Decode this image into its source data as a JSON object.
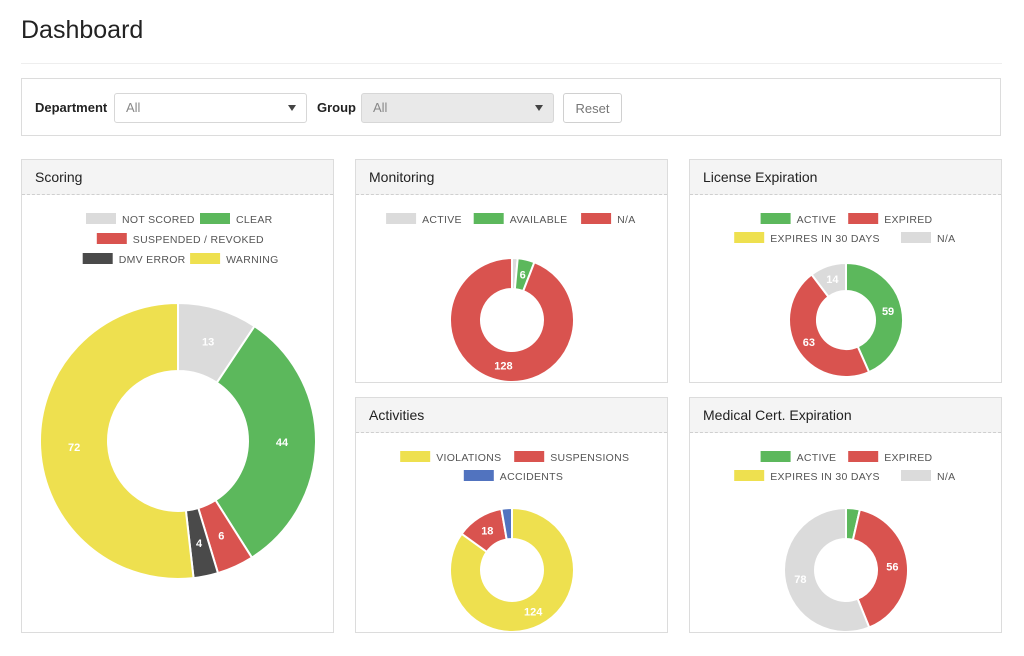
{
  "page": {
    "title": "Dashboard"
  },
  "filters": {
    "department_label": "Department",
    "department_value": "All",
    "group_label": "Group",
    "group_value": "All",
    "reset_label": "Reset"
  },
  "colors": {
    "gray": "#dbdbdb",
    "green": "#5cb85c",
    "red": "#d9534f",
    "yellow": "#eee04f",
    "dark": "#4a4a4a",
    "blue": "#5173bf"
  },
  "panels": {
    "scoring": {
      "title": "Scoring",
      "legend": [
        {
          "label": "NOT SCORED",
          "color": "#dbdbdb"
        },
        {
          "label": "CLEAR",
          "color": "#5cb85c"
        },
        {
          "label": "SUSPENDED / REVOKED",
          "color": "#d9534f"
        },
        {
          "label": "DMV ERROR",
          "color": "#4a4a4a"
        },
        {
          "label": "WARNING",
          "color": "#eee04f"
        }
      ]
    },
    "monitoring": {
      "title": "Monitoring",
      "legend": [
        {
          "label": "ACTIVE",
          "color": "#dbdbdb"
        },
        {
          "label": "AVAILABLE",
          "color": "#5cb85c"
        },
        {
          "label": "N/A",
          "color": "#d9534f"
        }
      ]
    },
    "license": {
      "title": "License Expiration",
      "legend": [
        {
          "label": "ACTIVE",
          "color": "#5cb85c"
        },
        {
          "label": "EXPIRED",
          "color": "#d9534f"
        },
        {
          "label": "EXPIRES IN 30 DAYS",
          "color": "#eee04f"
        },
        {
          "label": "N/A",
          "color": "#dbdbdb"
        }
      ]
    },
    "activities": {
      "title": "Activities",
      "legend": [
        {
          "label": "VIOLATIONS",
          "color": "#eee04f"
        },
        {
          "label": "SUSPENSIONS",
          "color": "#d9534f"
        },
        {
          "label": "ACCIDENTS",
          "color": "#5173bf"
        }
      ]
    },
    "medical": {
      "title": "Medical Cert. Expiration",
      "legend": [
        {
          "label": "ACTIVE",
          "color": "#5cb85c"
        },
        {
          "label": "EXPIRED",
          "color": "#d9534f"
        },
        {
          "label": "EXPIRES IN 30 DAYS",
          "color": "#eee04f"
        },
        {
          "label": "N/A",
          "color": "#dbdbdb"
        }
      ]
    }
  },
  "chart_data": [
    {
      "type": "pie",
      "title": "Scoring",
      "categories": [
        "NOT SCORED",
        "CLEAR",
        "SUSPENDED / REVOKED",
        "DMV ERROR",
        "WARNING"
      ],
      "values": [
        13,
        44,
        6,
        4,
        72
      ],
      "labels": [
        "13",
        "44",
        "6",
        "4",
        "72"
      ],
      "colors": [
        "#dbdbdb",
        "#5cb85c",
        "#d9534f",
        "#4a4a4a",
        "#eee04f"
      ]
    },
    {
      "type": "pie",
      "title": "Monitoring",
      "categories": [
        "ACTIVE",
        "AVAILABLE",
        "N/A"
      ],
      "values": [
        2,
        6,
        128
      ],
      "labels": [
        "",
        "6",
        "128"
      ],
      "colors": [
        "#dbdbdb",
        "#5cb85c",
        "#d9534f"
      ]
    },
    {
      "type": "pie",
      "title": "License Expiration",
      "categories": [
        "ACTIVE",
        "EXPIRED",
        "EXPIRES IN 30 DAYS",
        "N/A"
      ],
      "values": [
        59,
        63,
        0,
        14
      ],
      "labels": [
        "59",
        "63",
        "",
        "14"
      ],
      "colors": [
        "#5cb85c",
        "#d9534f",
        "#eee04f",
        "#dbdbdb"
      ]
    },
    {
      "type": "pie",
      "title": "Activities",
      "categories": [
        "VIOLATIONS",
        "SUSPENSIONS",
        "ACCIDENTS"
      ],
      "values": [
        124,
        18,
        4
      ],
      "labels": [
        "124",
        "18",
        ""
      ],
      "colors": [
        "#eee04f",
        "#d9534f",
        "#5173bf"
      ]
    },
    {
      "type": "pie",
      "title": "Medical Cert. Expiration",
      "categories": [
        "ACTIVE",
        "EXPIRED",
        "EXPIRES IN 30 DAYS",
        "N/A"
      ],
      "values": [
        5,
        56,
        0,
        78
      ],
      "labels": [
        "",
        "56",
        "",
        "78"
      ],
      "colors": [
        "#5cb85c",
        "#d9534f",
        "#eee04f",
        "#dbdbdb"
      ]
    }
  ]
}
